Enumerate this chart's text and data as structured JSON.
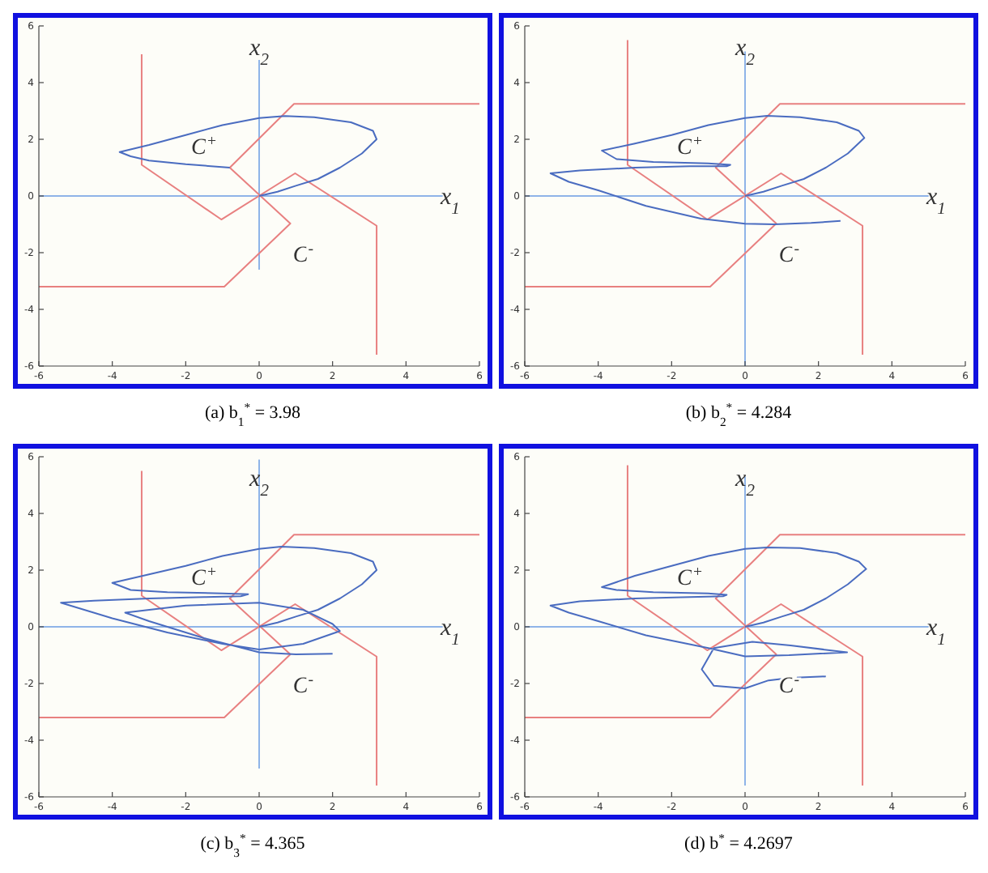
{
  "chart_data": [
    {
      "type": "line",
      "title": "(a) b$_{1}$$^{*}$ = 3.98",
      "xlabel": "x$_{1}$",
      "ylabel": "x$_{2}$",
      "xlim": [
        -6,
        6
      ],
      "ylim": [
        -6,
        6
      ],
      "xticks": [
        -6,
        -4,
        -2,
        0,
        2,
        4,
        6
      ],
      "yticks": [
        -6,
        -4,
        -2,
        0,
        2,
        4,
        6
      ],
      "grid": false,
      "line_style": "solid",
      "marker": "none",
      "annotations": [
        "C$^{+}$",
        "C$^{-}$"
      ],
      "series": [
        {
          "color": "#8fb4e8",
          "x": [
            -6,
            5
          ],
          "values": [
            0,
            0
          ]
        },
        {
          "color": "#8fb4e8",
          "x": [
            0,
            0
          ],
          "values": [
            -2.6,
            4.8
          ]
        },
        {
          "color": "#e88080",
          "x": [
            6,
            0.95,
            -0.8,
            0.85,
            -0.95,
            -6
          ],
          "values": [
            3.25,
            3.25,
            1,
            -0.97,
            -3.2,
            -3.2
          ]
        },
        {
          "color": "#e88080",
          "x": [
            -3.2,
            -3.2,
            -1.03,
            0.98,
            3.2,
            3.2
          ],
          "values": [
            5,
            1.1,
            -0.83,
            0.8,
            -1.05,
            -5.6
          ]
        },
        {
          "color": "#4a6cc0",
          "x": [
            0,
            0.5,
            1,
            1.6,
            2.2,
            2.8,
            3.2,
            3.1,
            2.5,
            1.5,
            0.7,
            0,
            -1,
            -2,
            -3,
            -3.8,
            -3.5,
            -3,
            -2,
            -0.8
          ],
          "values": [
            0,
            0.15,
            0.36,
            0.6,
            1,
            1.5,
            2,
            2.3,
            2.6,
            2.78,
            2.82,
            2.75,
            2.5,
            2.15,
            1.8,
            1.55,
            1.4,
            1.25,
            1.12,
            1
          ]
        }
      ]
    },
    {
      "type": "line",
      "title": "(b) b$_{2}$$^{*}$ = 4.284",
      "xlabel": "x$_{1}$",
      "ylabel": "x$_{2}$",
      "xlim": [
        -6,
        6
      ],
      "ylim": [
        -6,
        6
      ],
      "xticks": [
        -6,
        -4,
        -2,
        0,
        2,
        4,
        6
      ],
      "yticks": [
        -6,
        -4,
        -2,
        0,
        2,
        4,
        6
      ],
      "grid": false,
      "line_style": "solid",
      "marker": "none",
      "annotations": [
        "C$^{+}$",
        "C$^{-}$"
      ],
      "series": [
        {
          "color": "#8fb4e8",
          "x": [
            -6,
            5
          ],
          "values": [
            0,
            0
          ]
        },
        {
          "color": "#8fb4e8",
          "x": [
            0,
            0
          ],
          "values": [
            -6,
            5.1
          ]
        },
        {
          "color": "#e88080",
          "x": [
            6,
            0.95,
            -0.8,
            0.85,
            -0.95,
            -6
          ],
          "values": [
            3.25,
            3.25,
            1,
            -0.97,
            -3.2,
            -3.2
          ]
        },
        {
          "color": "#e88080",
          "x": [
            -3.2,
            -3.2,
            -1.03,
            0.98,
            3.2,
            3.2
          ],
          "values": [
            5.5,
            1.1,
            -0.83,
            0.8,
            -1.05,
            -5.6
          ]
        },
        {
          "color": "#4a6cc0",
          "x": [
            0,
            0.5,
            1,
            1.6,
            2.2,
            2.8,
            3.25,
            3.1,
            2.5,
            1.5,
            0.6,
            0,
            -1,
            -2,
            -3,
            -3.9,
            -3.5,
            -2.5,
            -1,
            -0.4,
            -0.5,
            -1.5,
            -3,
            -4.5,
            -5.3,
            -4.8,
            -4,
            -2.7,
            -1.2,
            0,
            0.8,
            1.8,
            2.6
          ],
          "values": [
            0,
            0.15,
            0.36,
            0.6,
            1,
            1.5,
            2.05,
            2.3,
            2.6,
            2.78,
            2.83,
            2.75,
            2.5,
            2.15,
            1.85,
            1.6,
            1.3,
            1.2,
            1.15,
            1.1,
            1.05,
            1.05,
            1,
            0.9,
            0.8,
            0.5,
            0.2,
            -0.35,
            -0.8,
            -0.98,
            -1,
            -0.95,
            -0.88
          ]
        }
      ]
    },
    {
      "type": "line",
      "title": "(c) b$_{3}$$^{*}$ = 4.365",
      "xlabel": "x$_{1}$",
      "ylabel": "x$_{2}$",
      "xlim": [
        -6,
        6
      ],
      "ylim": [
        -6,
        6
      ],
      "xticks": [
        -6,
        -4,
        -2,
        0,
        2,
        4,
        6
      ],
      "yticks": [
        -6,
        -4,
        -2,
        0,
        2,
        4,
        6
      ],
      "grid": false,
      "line_style": "solid",
      "marker": "none",
      "annotations": [
        "C$^{+}$",
        "C$^{-}$"
      ],
      "series": [
        {
          "color": "#8fb4e8",
          "x": [
            -6,
            5
          ],
          "values": [
            0,
            0
          ]
        },
        {
          "color": "#8fb4e8",
          "x": [
            0,
            0
          ],
          "values": [
            -5,
            5.9
          ]
        },
        {
          "color": "#e88080",
          "x": [
            6,
            0.95,
            -0.8,
            0.85,
            -0.95,
            -6
          ],
          "values": [
            3.25,
            3.25,
            1,
            -0.97,
            -3.2,
            -3.2
          ]
        },
        {
          "color": "#e88080",
          "x": [
            -3.2,
            -3.2,
            -1.03,
            0.98,
            3.2,
            3.2
          ],
          "values": [
            5.5,
            1.1,
            -0.83,
            0.8,
            -1.05,
            -5.6
          ]
        },
        {
          "color": "#4a6cc0",
          "x": [
            0,
            0.5,
            1,
            1.6,
            2.2,
            2.8,
            3.2,
            3.1,
            2.5,
            1.5,
            0.6,
            0,
            -1,
            -2,
            -3,
            -4,
            -3.5,
            -2.5,
            -1,
            -0.3,
            -0.5,
            -1.5,
            -3,
            -4.5,
            -5.4,
            -4,
            -2.5,
            -1,
            0,
            1.2,
            2.2,
            2,
            1.2,
            0,
            -2,
            -3.65,
            -3,
            -1.5,
            0,
            1,
            2
          ],
          "values": [
            0,
            0.15,
            0.36,
            0.6,
            1,
            1.5,
            2,
            2.3,
            2.6,
            2.78,
            2.83,
            2.75,
            2.5,
            2.15,
            1.85,
            1.55,
            1.3,
            1.22,
            1.18,
            1.15,
            1.08,
            1.05,
            1,
            0.92,
            0.85,
            0.3,
            -0.2,
            -0.6,
            -0.8,
            -0.6,
            -0.15,
            0.1,
            0.6,
            0.85,
            0.75,
            0.5,
            0.2,
            -0.4,
            -0.9,
            -0.97,
            -0.95
          ]
        }
      ]
    },
    {
      "type": "line",
      "title": "(d) b$^{*}$ = 4.2697",
      "xlabel": "x$_{1}$",
      "ylabel": "x$_{2}$",
      "xlim": [
        -6,
        6
      ],
      "ylim": [
        -6,
        6
      ],
      "xticks": [
        -6,
        -4,
        -2,
        0,
        2,
        4,
        6
      ],
      "yticks": [
        -6,
        -4,
        -2,
        0,
        2,
        4,
        6
      ],
      "grid": false,
      "line_style": "solid",
      "marker": "none",
      "annotations": [
        "C$^{+}$",
        "C$^{-}$"
      ],
      "series": [
        {
          "color": "#8fb4e8",
          "x": [
            -6,
            5
          ],
          "values": [
            0,
            0
          ]
        },
        {
          "color": "#8fb4e8",
          "x": [
            0,
            0
          ],
          "values": [
            -5.6,
            5.3
          ]
        },
        {
          "color": "#e88080",
          "x": [
            6,
            0.95,
            -0.8,
            0.85,
            -0.95,
            -6
          ],
          "values": [
            3.25,
            3.25,
            1,
            -0.97,
            -3.2,
            -3.2
          ]
        },
        {
          "color": "#e88080",
          "x": [
            -3.2,
            -3.2,
            -1.03,
            0.98,
            3.2,
            3.2
          ],
          "values": [
            5.7,
            1.1,
            -0.83,
            0.8,
            -1.05,
            -5.6
          ]
        },
        {
          "color": "#4a6cc0",
          "x": [
            0,
            0.5,
            1,
            1.6,
            2.2,
            2.8,
            3.3,
            3.1,
            2.5,
            1.5,
            0.6,
            0,
            -1,
            -2,
            -3,
            -3.9,
            -3.5,
            -2.5,
            -1,
            -0.5,
            -0.6,
            -1.5,
            -3,
            -4.5,
            -5.3,
            -4.8,
            -4,
            -2.7,
            -1,
            0,
            1.2,
            2.78,
            1.24,
            0.2,
            -0.85,
            -1.18,
            -0.85,
            0,
            0.64,
            1.24,
            2.2
          ],
          "values": [
            0,
            0.15,
            0.36,
            0.6,
            1,
            1.5,
            2.04,
            2.3,
            2.6,
            2.78,
            2.8,
            2.75,
            2.5,
            2.15,
            1.8,
            1.4,
            1.3,
            1.22,
            1.18,
            1.13,
            1.08,
            1.05,
            1,
            0.9,
            0.75,
            0.5,
            0.2,
            -0.3,
            -0.75,
            -1.04,
            -1,
            -0.9,
            -0.66,
            -0.53,
            -0.75,
            -1.5,
            -2.08,
            -2.17,
            -1.89,
            -1.8,
            -1.75
          ]
        }
      ]
    }
  ]
}
